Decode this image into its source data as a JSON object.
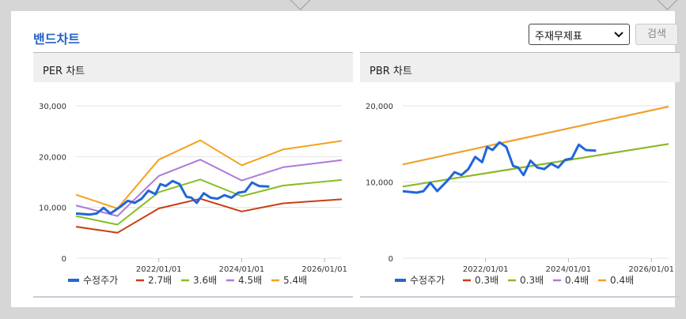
{
  "page": {
    "title": "밴드차트",
    "select_value": "주재무제표",
    "search_label": "검색"
  },
  "colors": {
    "title": "#2461c9",
    "price": "#2166d8",
    "band1": "#c83e14",
    "band2": "#86be23",
    "band3": "#ad7ad8",
    "band4": "#f4a21b"
  },
  "icons": {
    "select_arrow": "chevron-down-icon"
  },
  "chart_data": [
    {
      "type": "line",
      "title": "PER 차트",
      "x_ticks": [
        "2022/01/01",
        "2024/01/01",
        "2026/01/01"
      ],
      "y_ticks": [
        "0",
        "10,000",
        "20,000",
        "30,000"
      ],
      "ylim": [
        0,
        30000
      ],
      "xlim": [
        "2020/01/01",
        "2026/06/01"
      ],
      "grid": true,
      "legend_position": "bottom",
      "series": [
        {
          "name": "수정주가",
          "color": "#2166d8",
          "x": [
            "2020/01/01",
            "2020/05/01",
            "2020/07/01",
            "2020/09/01",
            "2020/11/01",
            "2021/02/01",
            "2021/04/01",
            "2021/06/01",
            "2021/08/01",
            "2021/10/01",
            "2021/12/01",
            "2022/01/15",
            "2022/03/01",
            "2022/05/01",
            "2022/07/01",
            "2022/09/01",
            "2022/10/15",
            "2022/12/01",
            "2023/02/01",
            "2023/04/01",
            "2023/06/01",
            "2023/08/01",
            "2023/10/01",
            "2023/12/01",
            "2024/02/01",
            "2024/04/01",
            "2024/06/01",
            "2024/09/01"
          ],
          "values": [
            8800,
            8600,
            8800,
            9900,
            8800,
            10200,
            11300,
            10900,
            11700,
            13300,
            12600,
            14600,
            14200,
            15200,
            14600,
            12100,
            11900,
            10900,
            12800,
            11900,
            11700,
            12400,
            11900,
            12900,
            13100,
            14900,
            14200,
            14100
          ]
        },
        {
          "name": "2.7배",
          "color": "#c83e14",
          "x": [
            "2020/01/01",
            "2021/01/01",
            "2022/01/01",
            "2023/01/01",
            "2024/01/01",
            "2025/01/01",
            "2026/06/01"
          ],
          "values": [
            6200,
            5000,
            9800,
            11700,
            9200,
            10800,
            11600
          ]
        },
        {
          "name": "3.6배",
          "color": "#86be23",
          "x": [
            "2020/01/01",
            "2021/01/01",
            "2022/01/01",
            "2023/01/01",
            "2024/01/01",
            "2025/01/01",
            "2026/06/01"
          ],
          "values": [
            8300,
            6600,
            13000,
            15500,
            12200,
            14300,
            15400
          ]
        },
        {
          "name": "4.5배",
          "color": "#ad7ad8",
          "x": [
            "2020/01/01",
            "2021/01/01",
            "2022/01/01",
            "2023/01/01",
            "2024/01/01",
            "2025/01/01",
            "2026/06/01"
          ],
          "values": [
            10400,
            8300,
            16200,
            19400,
            15300,
            17900,
            19300
          ]
        },
        {
          "name": "5.4배",
          "color": "#f4a21b",
          "x": [
            "2020/01/01",
            "2021/01/01",
            "2022/01/01",
            "2023/01/01",
            "2024/01/01",
            "2025/01/01",
            "2026/06/01"
          ],
          "values": [
            12500,
            9800,
            19400,
            23200,
            18300,
            21400,
            23100
          ]
        }
      ]
    },
    {
      "type": "line",
      "title": "PBR 차트",
      "x_ticks": [
        "2022/01/01",
        "2024/01/01",
        "2026/01/01"
      ],
      "y_ticks": [
        "0",
        "10,000",
        "20,000"
      ],
      "ylim": [
        0,
        20000
      ],
      "xlim": [
        "2020/01/01",
        "2026/06/01"
      ],
      "grid": true,
      "legend_position": "bottom",
      "series": [
        {
          "name": "수정주가",
          "color": "#2166d8",
          "x": [
            "2020/01/01",
            "2020/05/01",
            "2020/07/01",
            "2020/09/01",
            "2020/11/01",
            "2021/02/01",
            "2021/04/01",
            "2021/06/01",
            "2021/08/01",
            "2021/10/01",
            "2021/12/01",
            "2022/01/15",
            "2022/03/01",
            "2022/05/01",
            "2022/07/01",
            "2022/09/01",
            "2022/10/15",
            "2022/12/01",
            "2023/02/01",
            "2023/04/01",
            "2023/06/01",
            "2023/08/01",
            "2023/10/01",
            "2023/12/01",
            "2024/02/01",
            "2024/04/01",
            "2024/06/01",
            "2024/09/01"
          ],
          "values": [
            8800,
            8600,
            8800,
            9900,
            8800,
            10200,
            11300,
            10900,
            11700,
            13300,
            12600,
            14600,
            14200,
            15200,
            14600,
            12100,
            11900,
            10900,
            12800,
            11900,
            11700,
            12400,
            11900,
            12900,
            13100,
            14900,
            14200,
            14100
          ]
        },
        {
          "name": "0.3배",
          "color": "#c83e14",
          "x": [
            "2020/01/01",
            "2026/06/01"
          ],
          "values": [
            9400,
            15000
          ]
        },
        {
          "name": "0.3배",
          "color": "#86be23",
          "x": [
            "2020/01/01",
            "2026/06/01"
          ],
          "values": [
            9400,
            15000
          ]
        },
        {
          "name": "0.4배",
          "color": "#ad7ad8",
          "x": [
            "2020/01/01",
            "2026/06/01"
          ],
          "values": [
            12300,
            19900
          ]
        },
        {
          "name": "0.4배",
          "color": "#f4a21b",
          "x": [
            "2020/01/01",
            "2026/06/01"
          ],
          "values": [
            12300,
            19900
          ]
        }
      ]
    }
  ]
}
